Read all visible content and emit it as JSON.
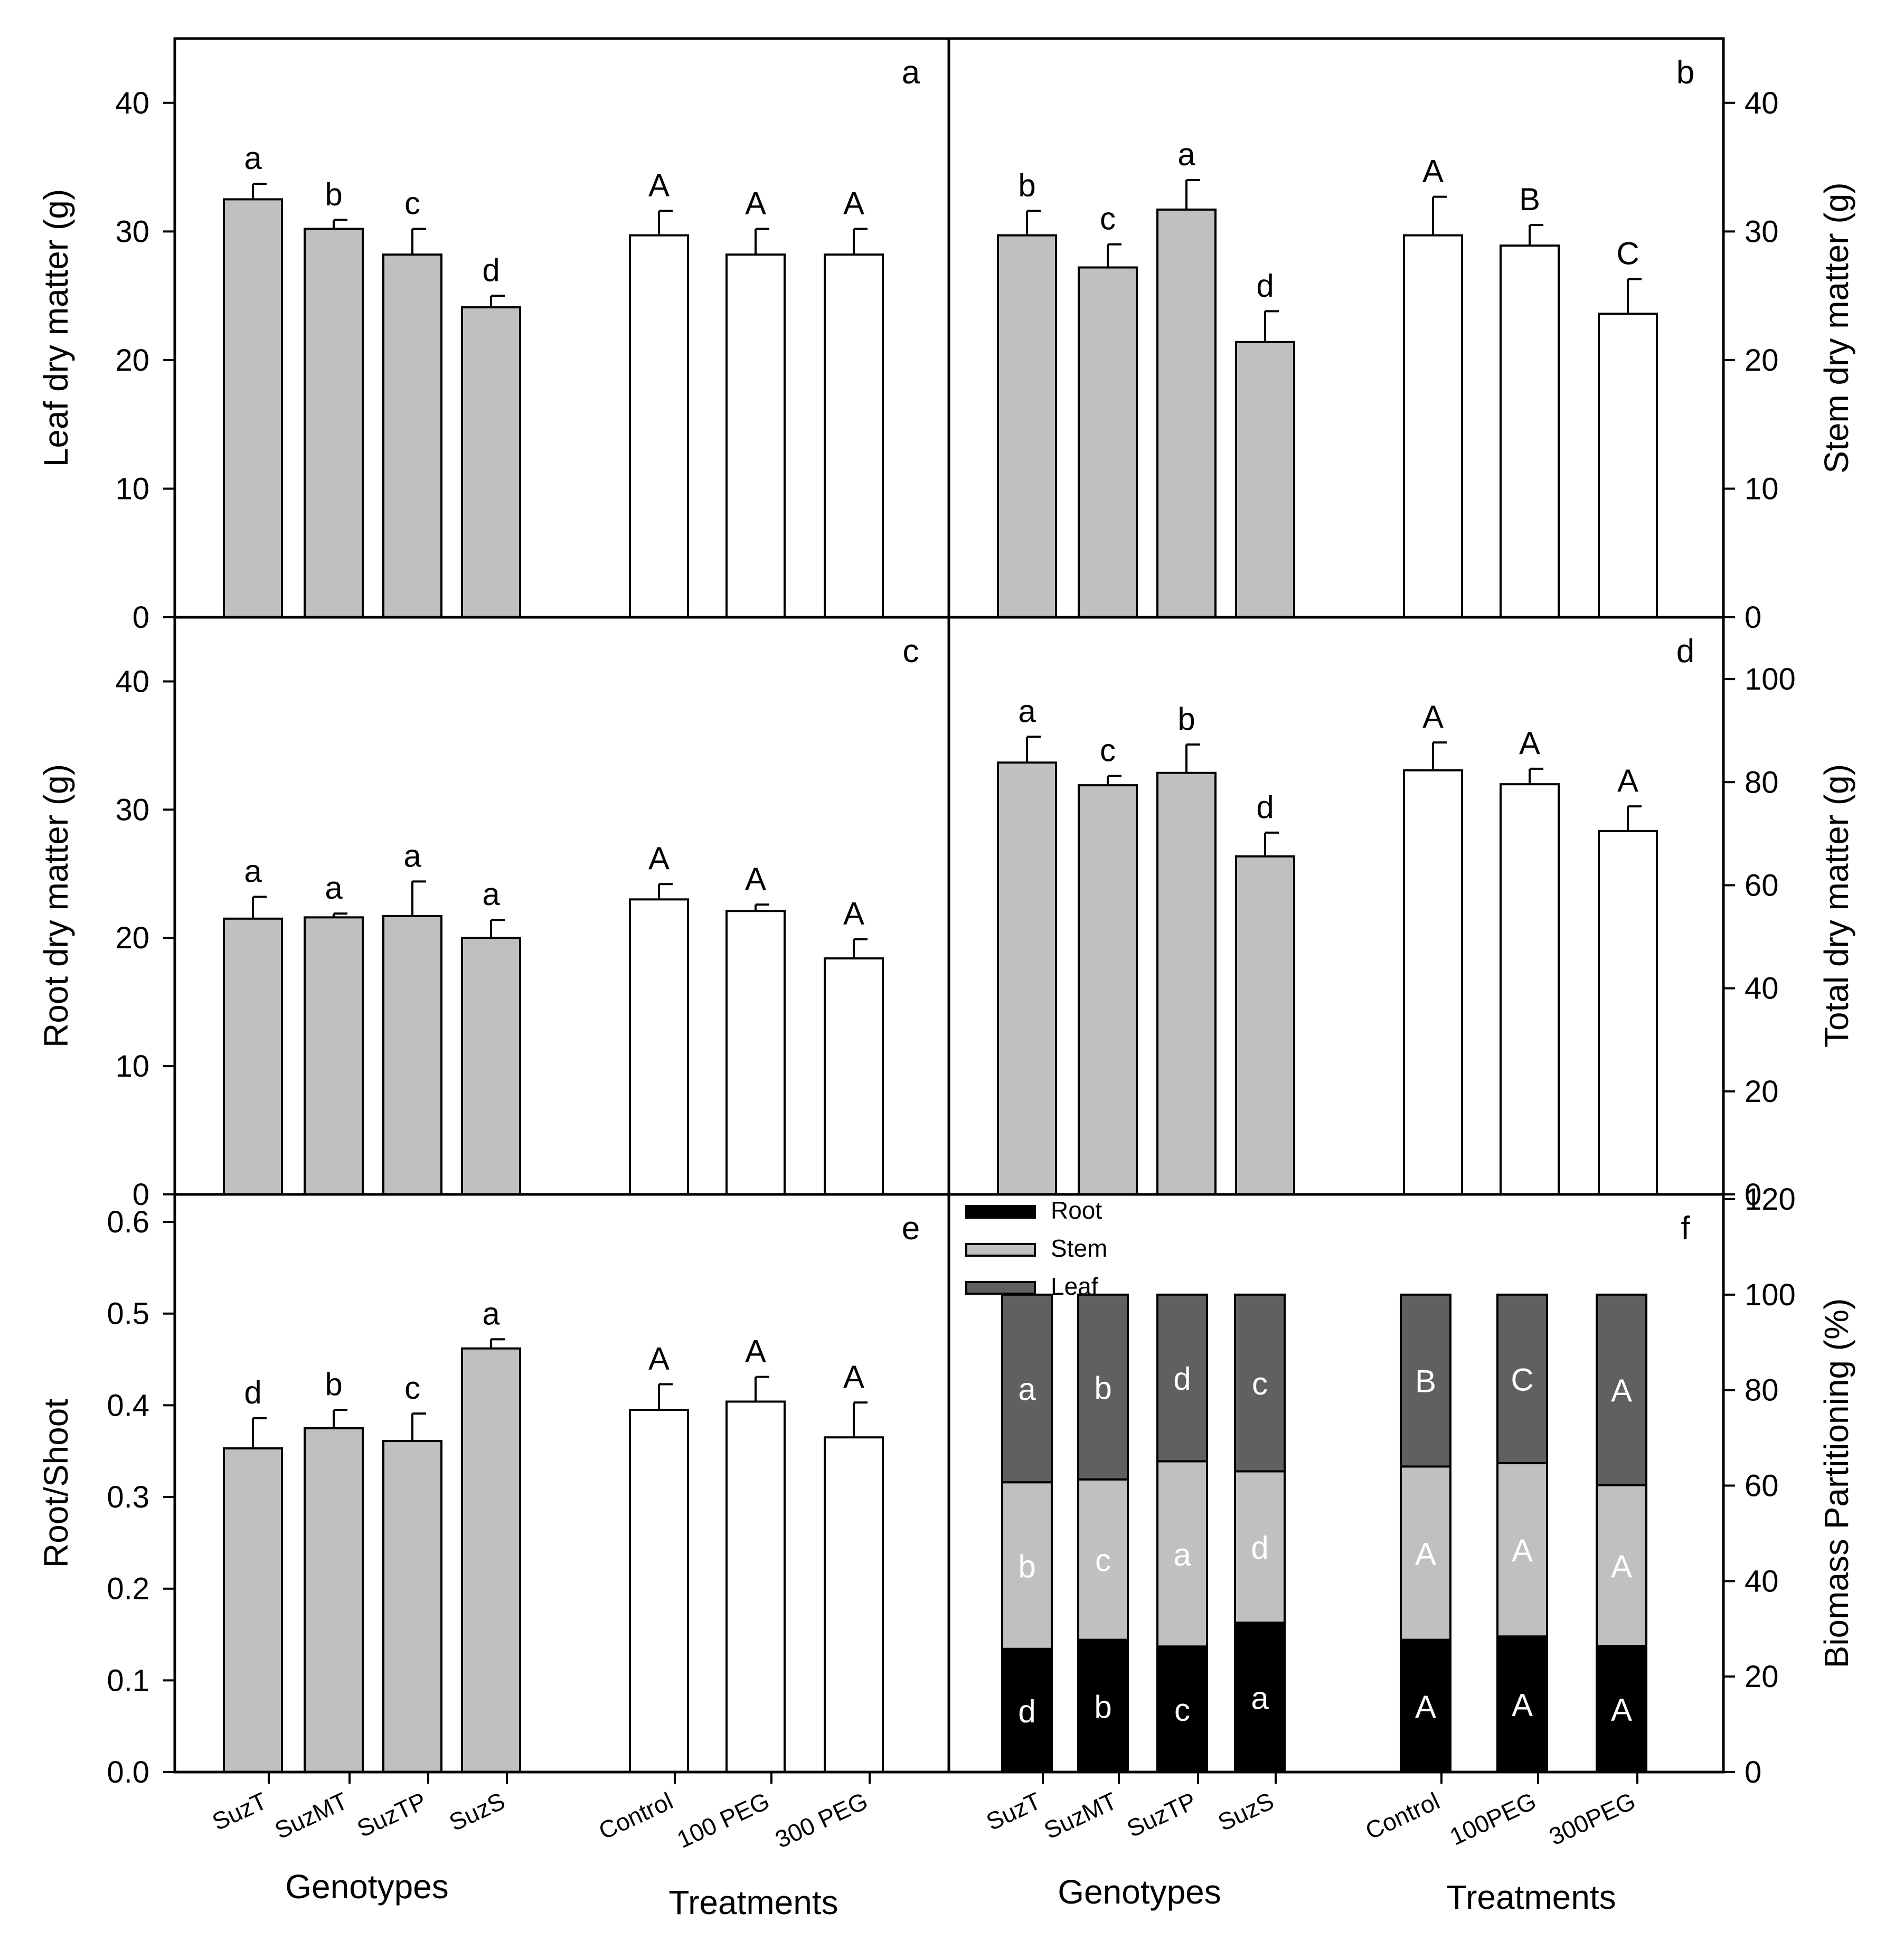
{
  "figure": {
    "genotypes": [
      "SuzT",
      "SuzMT",
      "SuzTP",
      "SuzS"
    ],
    "genotypes_axis_label": "Genotypes",
    "treatments_axis_label": "Treatments"
  },
  "colors": {
    "genotype_bar": "#c0c0c0",
    "treatment_bar": "#ffffff",
    "root": "#000000",
    "stem": "#c0c0c0",
    "leaf": "#606060",
    "frame": "#000000"
  },
  "chart_data": [
    {
      "panel": "a",
      "type": "bar",
      "ylabel": "Leaf dry matter (g)",
      "ylim": [
        0,
        45
      ],
      "yticks": [
        "0",
        "10",
        "20",
        "30",
        "40"
      ],
      "ytick_values": [
        0,
        10,
        20,
        30,
        40
      ],
      "genotypes": {
        "categories": [
          "SuzT",
          "SuzMT",
          "SuzTP",
          "SuzS"
        ],
        "values": [
          32.5,
          30.2,
          28.2,
          24.1
        ],
        "errors": [
          1.2,
          0.7,
          2.0,
          0.9
        ],
        "letters": [
          "a",
          "b",
          "c",
          "d"
        ]
      },
      "treatments": {
        "categories": [
          "Control",
          "100 PEG",
          "300 PEG"
        ],
        "values": [
          29.7,
          28.2,
          28.2
        ],
        "errors": [
          1.9,
          2.0,
          2.0
        ],
        "letters": [
          "A",
          "A",
          "A"
        ]
      }
    },
    {
      "panel": "b",
      "type": "bar",
      "ylabel": "Stem dry matter (g)",
      "ylim": [
        0,
        45
      ],
      "yticks": [
        "0",
        "10",
        "20",
        "30",
        "40"
      ],
      "ytick_values": [
        0,
        10,
        20,
        30,
        40
      ],
      "genotypes": {
        "categories": [
          "SuzT",
          "SuzMT",
          "SuzTP",
          "SuzS"
        ],
        "values": [
          29.7,
          27.2,
          31.7,
          21.4
        ],
        "errors": [
          1.9,
          1.8,
          2.3,
          2.4
        ],
        "letters": [
          "b",
          "c",
          "a",
          "d"
        ]
      },
      "treatments": {
        "categories": [
          "Control",
          "100PEG",
          "300PEG"
        ],
        "values": [
          29.7,
          28.9,
          23.6
        ],
        "errors": [
          3.0,
          1.6,
          2.7
        ],
        "letters": [
          "A",
          "B",
          "C"
        ]
      }
    },
    {
      "panel": "c",
      "type": "bar",
      "ylabel": "Root dry matter (g)",
      "ylim": [
        0,
        45
      ],
      "yticks": [
        "0",
        "10",
        "20",
        "30",
        "40"
      ],
      "ytick_values": [
        0,
        10,
        20,
        30,
        40
      ],
      "genotypes": {
        "categories": [
          "SuzT",
          "SuzMT",
          "SuzTP",
          "SuzS"
        ],
        "values": [
          21.5,
          21.6,
          21.7,
          20.0
        ],
        "errors": [
          1.7,
          0.3,
          2.7,
          1.4
        ],
        "letters": [
          "a",
          "a",
          "a",
          "a"
        ]
      },
      "treatments": {
        "categories": [
          "Control",
          "100 PEG",
          "300 PEG"
        ],
        "values": [
          23.0,
          22.1,
          18.4
        ],
        "errors": [
          1.2,
          0.5,
          1.5
        ],
        "letters": [
          "A",
          "A",
          "A"
        ]
      }
    },
    {
      "panel": "d",
      "type": "bar",
      "ylabel": "Total dry matter (g)",
      "ylim": [
        0,
        112
      ],
      "yticks": [
        "0",
        "20",
        "40",
        "60",
        "80",
        "100"
      ],
      "ytick_values": [
        0,
        20,
        40,
        60,
        80,
        100
      ],
      "genotypes": {
        "categories": [
          "SuzT",
          "SuzMT",
          "SuzTP",
          "SuzS"
        ],
        "values": [
          83.8,
          79.4,
          81.8,
          65.6
        ],
        "errors": [
          5.0,
          1.8,
          5.5,
          4.6
        ],
        "letters": [
          "a",
          "c",
          "b",
          "d"
        ]
      },
      "treatments": {
        "categories": [
          "Control",
          "100PEG",
          "300PEG"
        ],
        "values": [
          82.3,
          79.6,
          70.5
        ],
        "errors": [
          5.4,
          3.0,
          4.8
        ],
        "letters": [
          "A",
          "A",
          "A"
        ]
      }
    },
    {
      "panel": "e",
      "type": "bar",
      "ylabel": "Root/Shoot",
      "ylim": [
        0,
        0.63
      ],
      "yticks": [
        "0.0",
        "0.1",
        "0.2",
        "0.3",
        "0.4",
        "0.5",
        "0.6"
      ],
      "ytick_values": [
        0,
        0.1,
        0.2,
        0.3,
        0.4,
        0.5,
        0.6
      ],
      "genotypes": {
        "categories": [
          "SuzT",
          "SuzMT",
          "SuzTP",
          "SuzS"
        ],
        "values": [
          0.353,
          0.375,
          0.361,
          0.462
        ],
        "errors": [
          0.033,
          0.02,
          0.03,
          0.01
        ],
        "letters": [
          "d",
          "b",
          "c",
          "a"
        ]
      },
      "treatments": {
        "categories": [
          "Control",
          "100 PEG",
          "300 PEG"
        ],
        "values": [
          0.395,
          0.404,
          0.365
        ],
        "errors": [
          0.028,
          0.027,
          0.038
        ],
        "letters": [
          "A",
          "A",
          "A"
        ]
      }
    },
    {
      "panel": "f",
      "type": "stacked-bar",
      "ylabel": "Biomass Partitioning (%)",
      "ylim": [
        0,
        121
      ],
      "yticks": [
        "0",
        "20",
        "40",
        "60",
        "80",
        "100",
        "120"
      ],
      "ytick_values": [
        0,
        20,
        40,
        60,
        80,
        100,
        120
      ],
      "legend": [
        "Root",
        "Stem",
        "Leaf"
      ],
      "legend_position": "top-left",
      "genotypes": {
        "categories": [
          "SuzT",
          "SuzMT",
          "SuzTP",
          "SuzS"
        ],
        "root": [
          25.8,
          27.7,
          26.3,
          31.3
        ],
        "stem": [
          34.9,
          33.6,
          38.8,
          31.7
        ],
        "leaf": [
          39.3,
          38.7,
          34.9,
          37.0
        ],
        "root_letters": [
          "d",
          "b",
          "c",
          "a"
        ],
        "stem_letters": [
          "b",
          "c",
          "a",
          "d"
        ],
        "leaf_letters": [
          "a",
          "b",
          "d",
          "c"
        ]
      },
      "treatments": {
        "categories": [
          "Control",
          "100PEG",
          "300PEG"
        ],
        "root": [
          27.7,
          28.4,
          26.4
        ],
        "stem": [
          36.3,
          36.3,
          33.7
        ],
        "leaf": [
          36.0,
          35.3,
          39.9
        ],
        "root_letters": [
          "A",
          "A",
          "A"
        ],
        "stem_letters": [
          "A",
          "A",
          "A"
        ],
        "leaf_letters": [
          "B",
          "C",
          "A"
        ]
      }
    }
  ]
}
